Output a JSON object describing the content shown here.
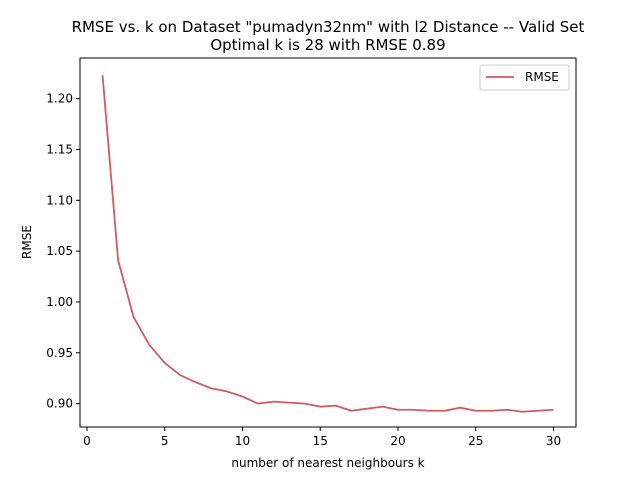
{
  "chart_data": {
    "type": "line",
    "title": "RMSE vs. k on Dataset \"pumadyn32nm\" with l2 Distance -- Valid Set",
    "subtitle": "Optimal k is 28 with RMSE 0.89",
    "xlabel": "number of nearest neighbours k",
    "ylabel": "RMSE",
    "xlim": [
      -0.45,
      31.45
    ],
    "ylim": [
      0.877,
      1.24
    ],
    "xticks": [
      "0",
      "5",
      "10",
      "15",
      "20",
      "25",
      "30"
    ],
    "xtick_values": [
      0,
      5,
      10,
      15,
      20,
      25,
      30
    ],
    "yticks": [
      "0.90",
      "0.95",
      "1.00",
      "1.05",
      "1.10",
      "1.15",
      "1.20"
    ],
    "ytick_values": [
      0.9,
      0.95,
      1.0,
      1.05,
      1.1,
      1.15,
      1.2
    ],
    "grid": false,
    "legend_position": "top-right",
    "series": [
      {
        "name": "RMSE",
        "color": "#d15a60",
        "x": [
          1,
          2,
          3,
          4,
          5,
          6,
          7,
          8,
          9,
          10,
          11,
          12,
          13,
          14,
          15,
          16,
          17,
          18,
          19,
          20,
          21,
          22,
          23,
          24,
          25,
          26,
          27,
          28,
          29,
          30
        ],
        "y": [
          1.223,
          1.041,
          0.985,
          0.958,
          0.94,
          0.928,
          0.921,
          0.915,
          0.912,
          0.907,
          0.9,
          0.902,
          0.901,
          0.9,
          0.897,
          0.898,
          0.893,
          0.895,
          0.897,
          0.894,
          0.894,
          0.893,
          0.893,
          0.896,
          0.893,
          0.893,
          0.894,
          0.892,
          0.893,
          0.894
        ]
      }
    ]
  }
}
